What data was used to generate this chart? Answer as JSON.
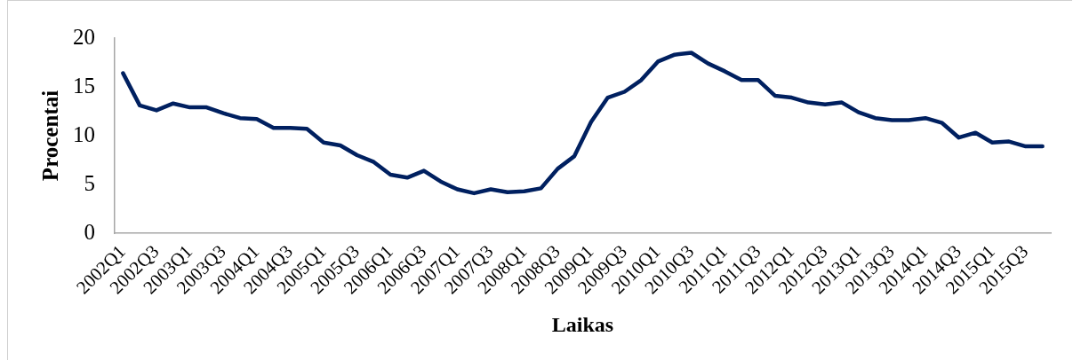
{
  "chart_data": {
    "type": "line",
    "xlabel": "Laikas",
    "ylabel": "Procentai",
    "categories": [
      "2002Q1",
      null,
      "2002Q3",
      null,
      "2003Q1",
      null,
      "2003Q3",
      null,
      "2004Q1",
      null,
      "2004Q3",
      null,
      "2005Q1",
      null,
      "2005Q3",
      null,
      "2006Q1",
      null,
      "2006Q3",
      null,
      "2007Q1",
      null,
      "2007Q3",
      null,
      "2008Q1",
      null,
      "2008Q3",
      null,
      "2009Q1",
      null,
      "2009Q3",
      null,
      "2010Q1",
      null,
      "2010Q3",
      null,
      "2011Q1",
      null,
      "2011Q3",
      null,
      "2012Q1",
      null,
      "2012Q3",
      null,
      "2013Q1",
      null,
      "2013Q3",
      null,
      "2014Q1",
      null,
      "2014Q3",
      null,
      "2015Q1",
      null,
      "2015Q3",
      null
    ],
    "values": [
      16.4,
      13.1,
      12.6,
      13.3,
      12.9,
      12.9,
      12.3,
      11.8,
      11.7,
      10.8,
      10.8,
      10.7,
      9.3,
      9.0,
      8.0,
      7.3,
      6.0,
      5.7,
      6.4,
      5.3,
      4.5,
      4.1,
      4.5,
      4.2,
      4.3,
      4.6,
      6.6,
      7.9,
      11.4,
      13.9,
      14.5,
      15.7,
      17.6,
      18.3,
      18.5,
      17.4,
      16.6,
      15.7,
      15.7,
      14.1,
      13.9,
      13.4,
      13.2,
      13.4,
      12.4,
      11.8,
      11.6,
      11.6,
      11.8,
      11.3,
      9.8,
      10.3,
      9.3,
      9.4,
      8.9,
      8.9
    ],
    "color": "#002060",
    "ylim": [
      0,
      20
    ],
    "yticks": [
      0,
      5,
      10,
      15,
      20
    ],
    "grid": false,
    "legend": false,
    "marker": "none",
    "line_style": "solid"
  }
}
